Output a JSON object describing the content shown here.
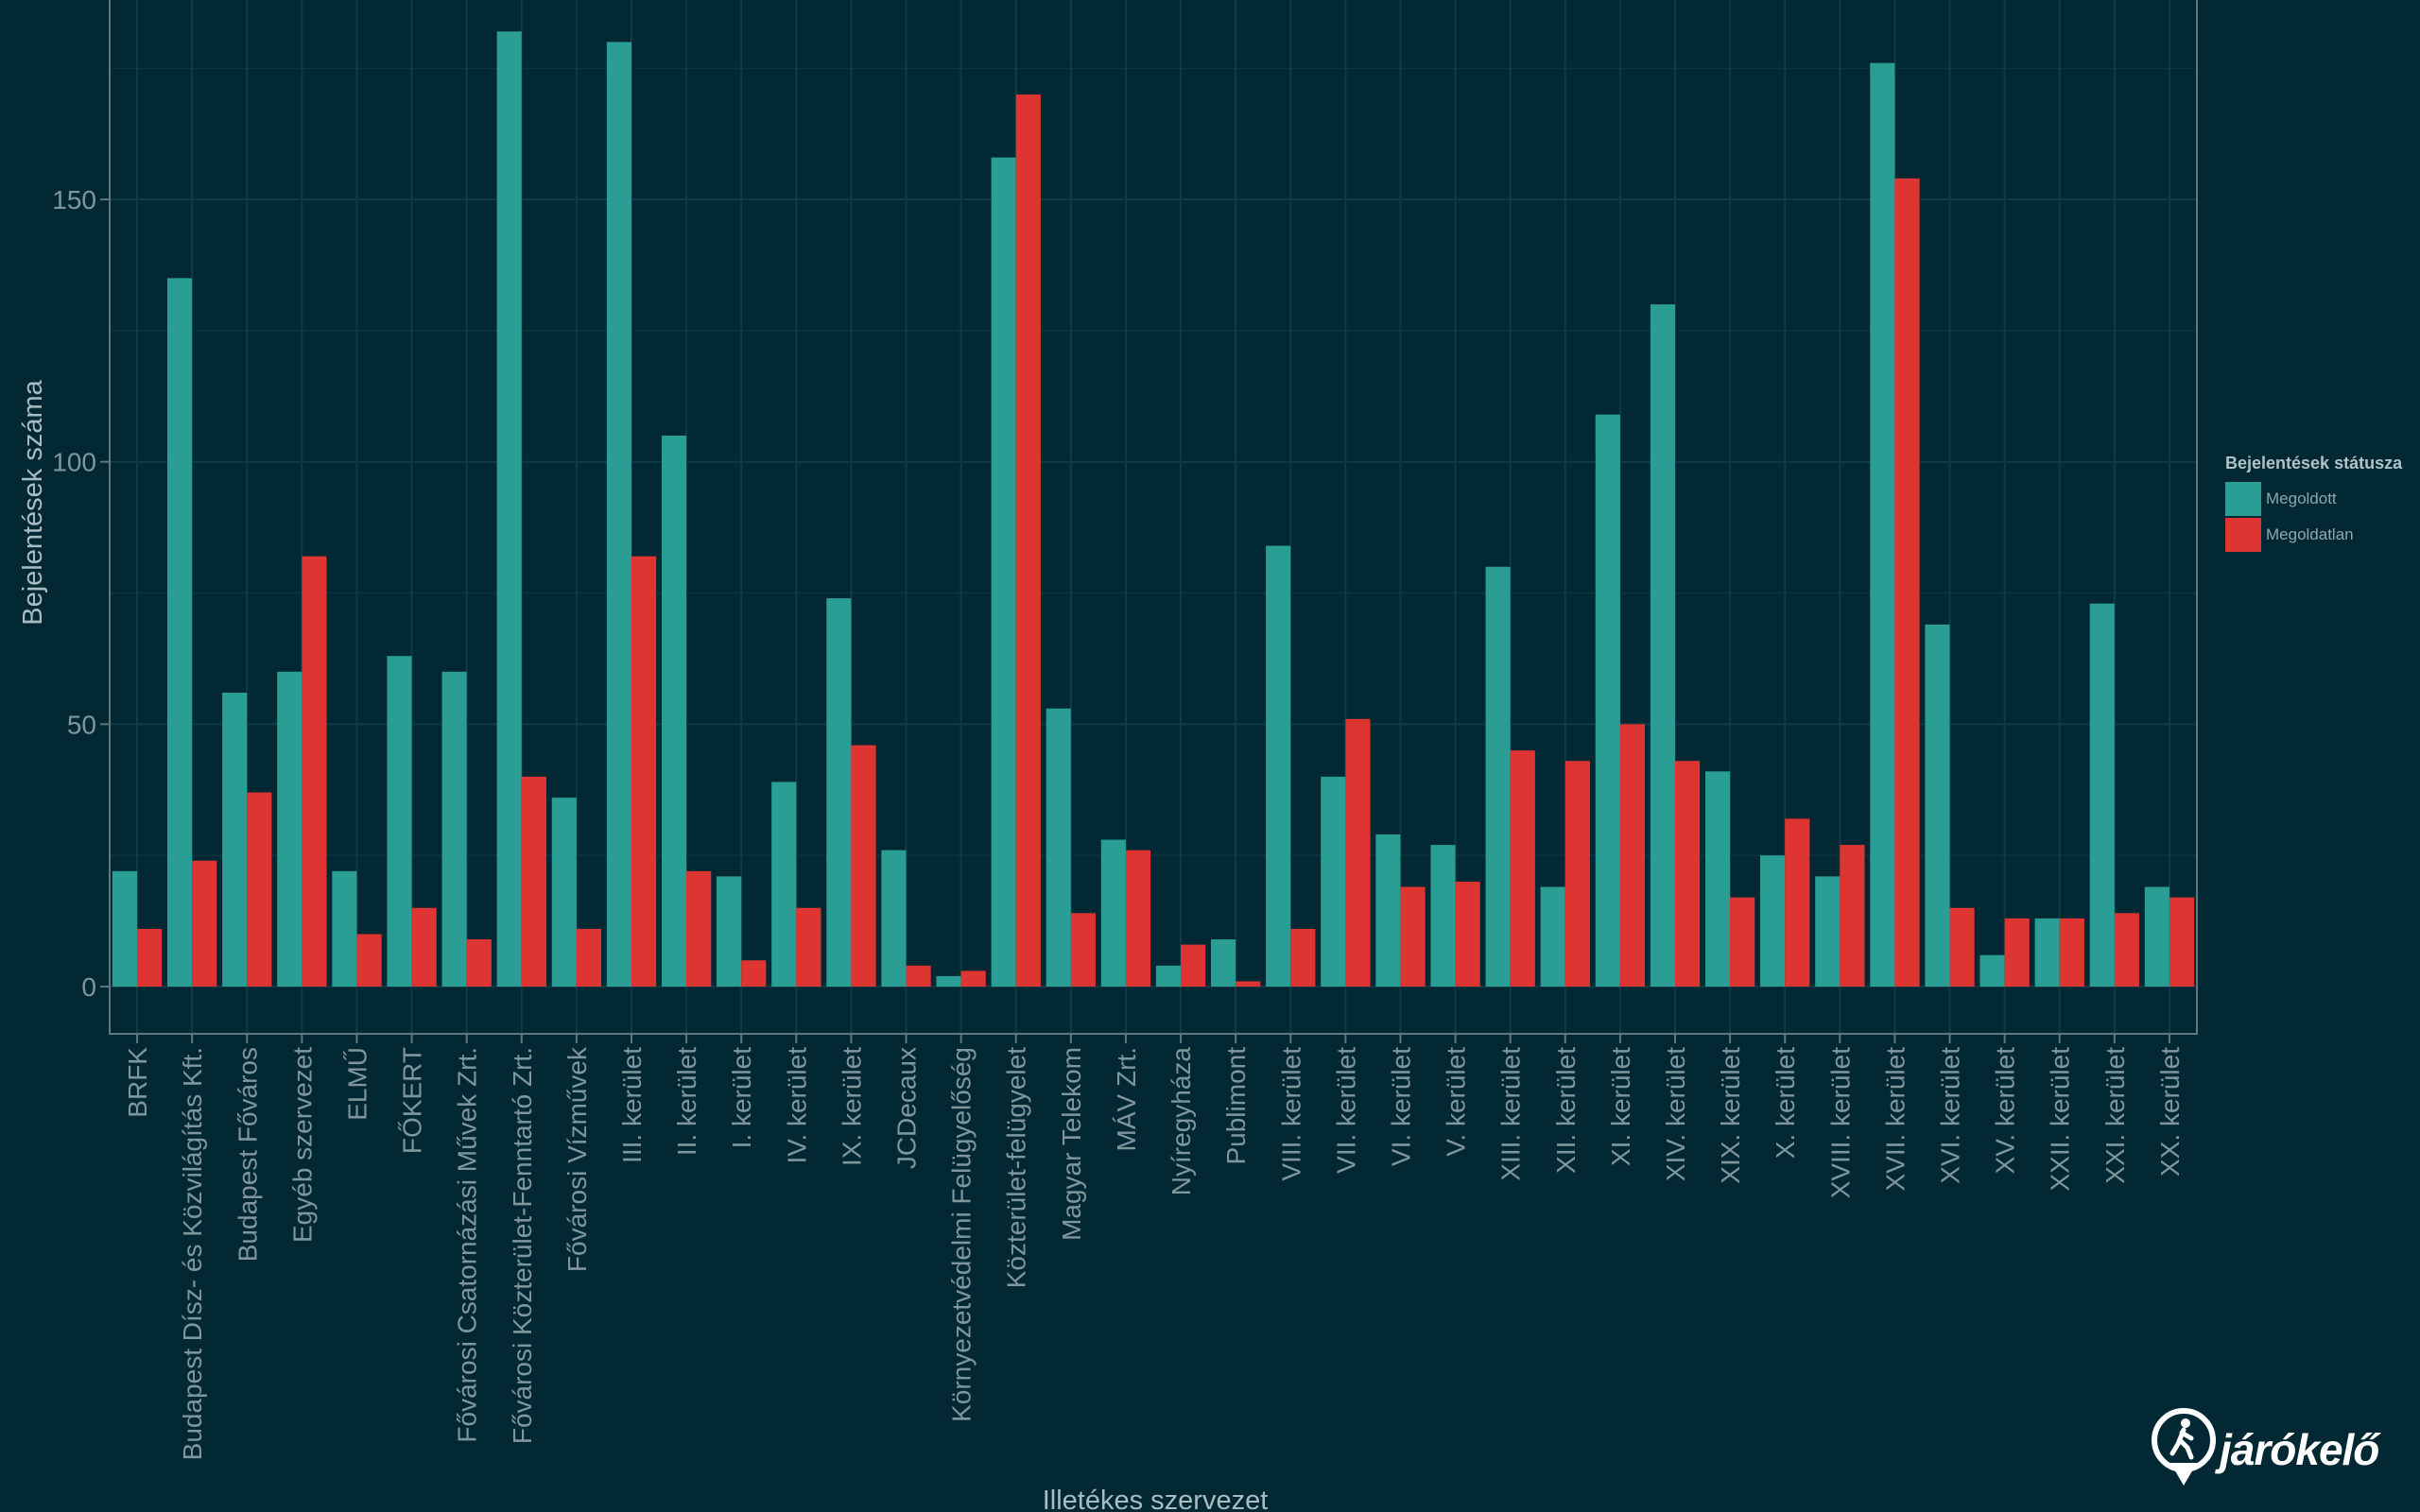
{
  "chart_data": {
    "type": "bar",
    "title": "",
    "xlabel": "Illetékes szervezet",
    "ylabel": "Bejelentések száma",
    "ylim": [
      -9,
      188
    ],
    "yticks": [
      0,
      50,
      100,
      150
    ],
    "categories": [
      "BRFK",
      "Budapest Dísz- és Közvilágítás Kft.",
      "Budapest Főváros",
      "Egyéb szervezet",
      "ELMŰ",
      "FŐKERT",
      "Fővárosi Csatornázási Művek Zrt.",
      "Fővárosi Közterület-Fenntartó Zrt.",
      "Fővárosi Vízművek",
      "III. kerület",
      "II. kerület",
      "I. kerület",
      "IV. kerület",
      "IX. kerület",
      "JCDecaux",
      "Környezetvédelmi Felügyelőség",
      "Közterület-felügyelet",
      "Magyar Telekom",
      "MÁV Zrt.",
      "Nyíregyháza",
      "Publimont",
      "VIII. kerület",
      "VII. kerület",
      "VI. kerület",
      "V. kerület",
      "XIII. kerület",
      "XII. kerület",
      "XI. kerület",
      "XIV. kerület",
      "XIX. kerület",
      "X. kerület",
      "XVIII. kerület",
      "XVII. kerület",
      "XVI. kerület",
      "XV. kerület",
      "XXII. kerület",
      "XXI. kerület",
      "XX. kerület"
    ],
    "series": [
      {
        "name": "Megoldott",
        "color": "#2a9d94",
        "values": [
          22,
          135,
          56,
          60,
          22,
          63,
          60,
          182,
          36,
          180,
          105,
          21,
          39,
          74,
          26,
          2,
          158,
          53,
          28,
          4,
          9,
          84,
          40,
          29,
          27,
          80,
          19,
          109,
          130,
          41,
          25,
          21,
          176,
          69,
          6,
          13,
          73,
          19
        ]
      },
      {
        "name": "Megoldatlan",
        "color": "#df3532",
        "values": [
          11,
          24,
          37,
          82,
          10,
          15,
          9,
          40,
          11,
          82,
          22,
          5,
          15,
          46,
          4,
          3,
          170,
          14,
          26,
          8,
          1,
          11,
          51,
          19,
          20,
          45,
          43,
          50,
          43,
          17,
          32,
          27,
          154,
          15,
          13,
          13,
          14,
          17
        ]
      }
    ],
    "legend": {
      "title": "Bejelentések státusza",
      "position": "right"
    },
    "grid": true
  },
  "logo": {
    "text": "járókelő"
  }
}
